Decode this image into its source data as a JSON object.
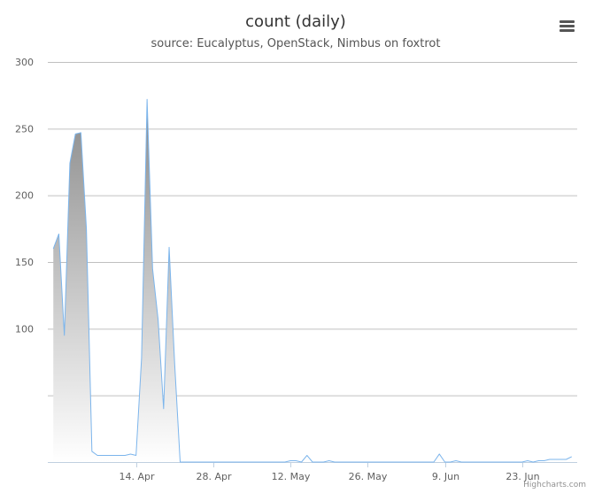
{
  "chart": {
    "title": "count (daily)",
    "subtitle": "source: Eucalyptus, OpenStack, Nimbus on foxtrot",
    "credits": "Highcharts.com",
    "menu_icon": "hamburger-menu-icon"
  },
  "colors": {
    "line": "#7cb5ec",
    "fill_top": "#8a8a8a",
    "fill_bottom": "#ffffff",
    "grid": "#c0c0c0",
    "axis": "#c0d0e0"
  },
  "chart_data": {
    "type": "area",
    "title": "count (daily)",
    "subtitle": "source: Eucalyptus, OpenStack, Nimbus on foxtrot",
    "xlabel": "",
    "ylabel": "",
    "x_start": "2014-03-30",
    "x_end": "2014-07-02",
    "xlim": [
      "2014-03-29",
      "2014-07-03"
    ],
    "ylim": [
      0,
      300
    ],
    "y_ticks": [
      100,
      150,
      200,
      250,
      300
    ],
    "grid": true,
    "legend": false,
    "x_tick_labels": [
      {
        "date": "2014-04-14",
        "label": "14. Apr"
      },
      {
        "date": "2014-04-28",
        "label": "28. Apr"
      },
      {
        "date": "2014-05-12",
        "label": "12. May"
      },
      {
        "date": "2014-05-26",
        "label": "26. May"
      },
      {
        "date": "2014-06-09",
        "label": "9. Jun"
      },
      {
        "date": "2014-06-23",
        "label": "23. Jun"
      }
    ],
    "series": [
      {
        "values": [
          160,
          171,
          95,
          224,
          246,
          247,
          175,
          8,
          5,
          5,
          5,
          5,
          5,
          5,
          6,
          5,
          78,
          272,
          145,
          107,
          40,
          161,
          74,
          0,
          0,
          0,
          0,
          0,
          0,
          0,
          0,
          0,
          0,
          0,
          0,
          0,
          0,
          0,
          0,
          0,
          0,
          0,
          0,
          1,
          1,
          0,
          5,
          0,
          0,
          0,
          1,
          0,
          0,
          0,
          0,
          0,
          0,
          0,
          0,
          0,
          0,
          0,
          0,
          0,
          0,
          0,
          0,
          0,
          0,
          0,
          6,
          0,
          0,
          1,
          0,
          0,
          0,
          0,
          0,
          0,
          0,
          0,
          0,
          0,
          0,
          0,
          1,
          0,
          1,
          1,
          2,
          2,
          2,
          2,
          4
        ]
      }
    ]
  }
}
